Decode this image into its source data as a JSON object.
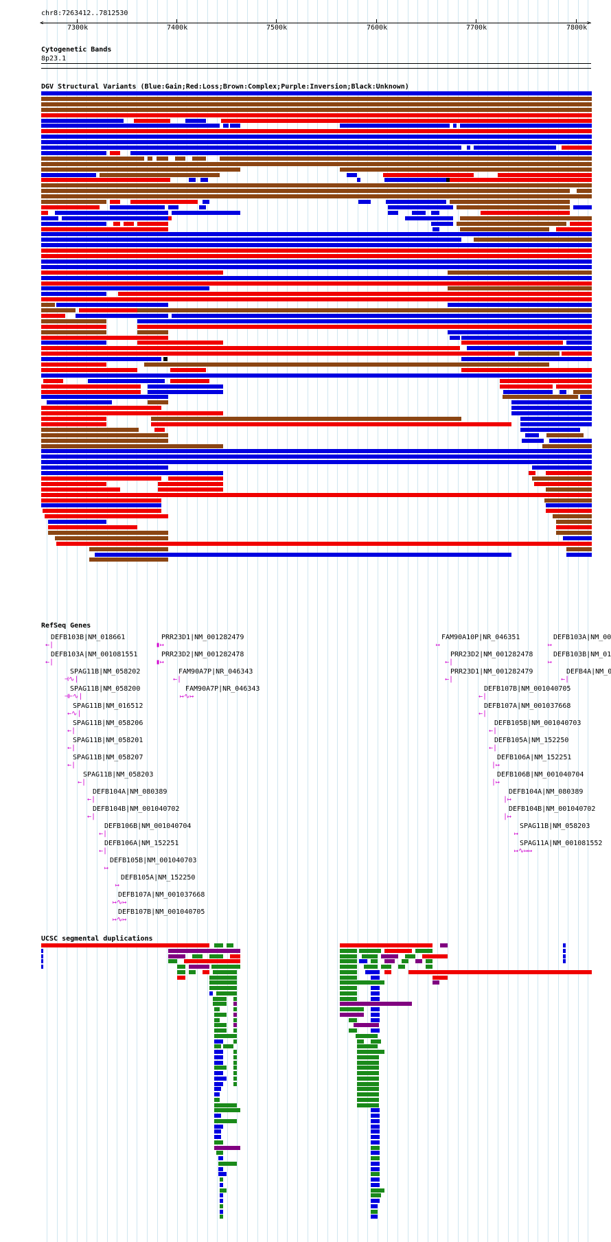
{
  "ruler": {
    "position": "chr8:7263412..7812530",
    "ticks": [
      "7300k",
      "7400k",
      "7500k",
      "7600k",
      "7700k",
      "7800k"
    ]
  },
  "cytobands": {
    "title": "Cytogenetic Bands",
    "band": "8p23.1"
  },
  "dgv": {
    "title": "DGV Structural Variants (Blue:Gain;Red:Loss;Brown:Complex;Purple:Inversion;Black:Unknown)"
  },
  "refseq": {
    "title": "RefSeq Genes",
    "genes": [
      "DEFB103B|NM_018661",
      "DEFB103A|NM_001081551",
      "SPAG11B|NM_058202",
      "SPAG11B|NM_058200",
      "SPAG11B|NM_016512",
      "SPAG11B|NM_058206",
      "SPAG11B|NM_058201",
      "SPAG11B|NM_058207",
      "SPAG11B|NM_058203",
      "DEFB104A|NM_080389",
      "DEFB104B|NM_001040702",
      "DEFB106B|NM_001040704",
      "DEFB106A|NM_152251",
      "DEFB105B|NM_001040703",
      "DEFB105A|NM_152250",
      "DEFB107A|NM_001037668",
      "DEFB107B|NM_001040705",
      "PRR23D1|NM_001282479",
      "PRR23D2|NM_001282478",
      "FAM90A7P|NR_046343",
      "FAM90A7P|NR_046343",
      "FAM90A10P|NR_046351",
      "PRR23D2|NM_001282478",
      "PRR23D1|NM_001282479",
      "DEFB107B|NM_001040705",
      "DEFB107A|NM_001037668",
      "DEFB105B|NM_001040703",
      "DEFB105A|NM_152250",
      "DEFB106A|NM_152251",
      "DEFB106B|NM_001040704",
      "DEFB104A|NM_080389",
      "DEFB104B|NM_001040702",
      "SPAG11B|NM_058203",
      "SPAG11A|NM_001081552",
      "DEFB103A|NM_00",
      "DEFB103B|NM_01",
      "DEFB4A|NM_0"
    ]
  },
  "segdups": {
    "title": "UCSC segmental duplications"
  },
  "colors": {
    "gain": "#0000e0",
    "loss": "#f00000",
    "complex": "#8b4513",
    "inversion": "#800080",
    "unknown": "#000000",
    "gene": "#d000d0",
    "segdup_green": "#1a8a1a",
    "segdup_red": "#f00000",
    "segdup_purple": "#800080",
    "segdup_blue": "#0000e0",
    "gridline": "#cfe6f0"
  }
}
